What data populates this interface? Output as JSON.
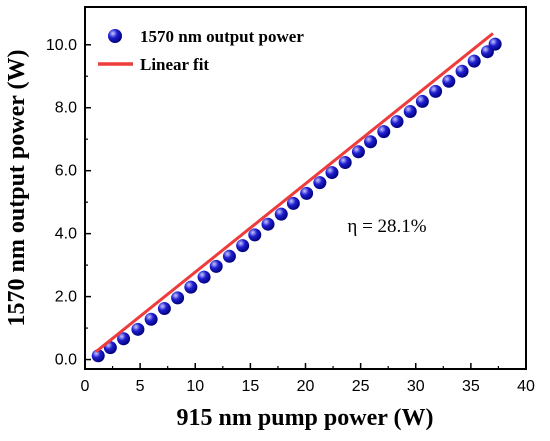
{
  "chart_data": {
    "type": "scatter",
    "xlabel": "915 nm pump power (W)",
    "ylabel": "1570 nm output power (W)",
    "xlim": [
      0,
      40
    ],
    "ylim": [
      -0.3,
      11.2
    ],
    "x_ticks": [
      0,
      5,
      10,
      15,
      20,
      25,
      30,
      35,
      40
    ],
    "y_ticks": [
      0.0,
      2.0,
      4.0,
      6.0,
      8.0,
      10.0
    ],
    "grid": false,
    "legend_position": "top-left",
    "series": [
      {
        "name": "1570 nm output power",
        "kind": "scatter",
        "color": "#1f1fd1",
        "x": [
          1.2,
          2.3,
          3.5,
          4.8,
          6.0,
          7.2,
          8.4,
          9.6,
          10.8,
          11.9,
          13.1,
          14.3,
          15.4,
          16.6,
          17.8,
          18.9,
          20.1,
          21.3,
          22.4,
          23.6,
          24.8,
          25.9,
          27.1,
          28.3,
          29.5,
          30.6,
          31.8,
          33.0,
          34.2,
          35.3,
          36.5,
          37.2
        ],
        "y": [
          0.12,
          0.38,
          0.66,
          0.96,
          1.28,
          1.62,
          1.96,
          2.3,
          2.62,
          2.96,
          3.28,
          3.62,
          3.96,
          4.3,
          4.62,
          4.96,
          5.28,
          5.62,
          5.94,
          6.26,
          6.6,
          6.92,
          7.24,
          7.56,
          7.88,
          8.2,
          8.52,
          8.84,
          9.16,
          9.48,
          9.78,
          10.02
        ]
      },
      {
        "name": "Linear fit",
        "kind": "line",
        "color": "#ee3b3b",
        "x": [
          1.0,
          37.0
        ],
        "y": [
          0.25,
          10.36
        ]
      }
    ],
    "annotations": [
      {
        "text": "η  = 28.1%",
        "x": 23.8,
        "y": 4.05
      }
    ]
  }
}
